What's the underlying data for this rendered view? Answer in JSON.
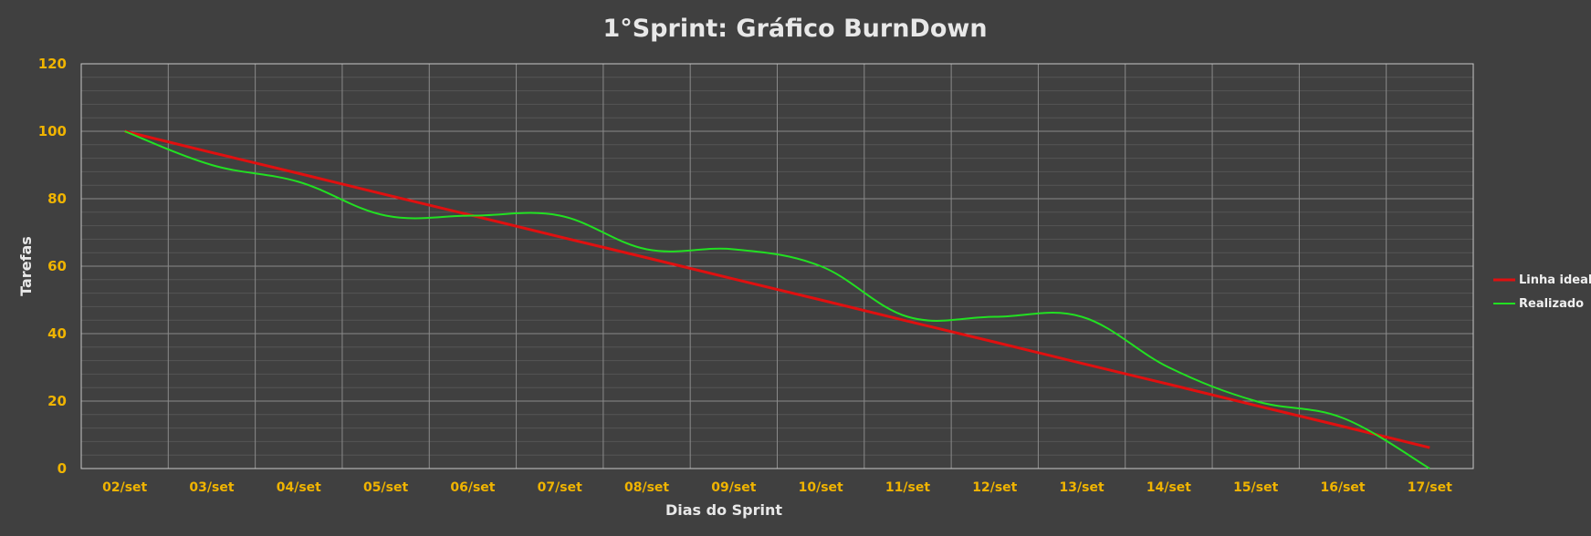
{
  "chart_data": {
    "type": "line",
    "title": "1°Sprint: Gráfico BurnDown",
    "xlabel": "Dias do Sprint",
    "ylabel": "Tarefas",
    "ylim": [
      0,
      120
    ],
    "yticks": [
      0,
      20,
      40,
      60,
      80,
      100,
      120
    ],
    "grid": true,
    "legend_position": "right",
    "categories": [
      "02/set",
      "03/set",
      "04/set",
      "05/set",
      "06/set",
      "07/set",
      "08/set",
      "09/set",
      "10/set",
      "11/set",
      "12/set",
      "13/set",
      "14/set",
      "15/set",
      "16/set",
      "17/set"
    ],
    "series": [
      {
        "name": "Linha ideal",
        "color": "#e01010",
        "values": [
          100,
          93.7,
          87.5,
          81.2,
          75,
          68.7,
          62.5,
          56.2,
          50,
          43.7,
          37.5,
          31.2,
          25,
          18.7,
          12.5,
          6.2
        ]
      },
      {
        "name": "Realizado",
        "color": "#22e022",
        "smooth": true,
        "values": [
          100,
          90,
          85,
          75,
          75,
          75,
          65,
          65,
          60,
          45,
          45,
          45,
          30,
          20,
          15,
          0
        ]
      }
    ],
    "colors": {
      "background": "#404040",
      "plot_border": "#c8c8c8",
      "major_grid": "#8a8a8a",
      "minor_grid": "#555555",
      "tick_labels": "#f0b400",
      "titles": "#e8e8e8"
    }
  }
}
